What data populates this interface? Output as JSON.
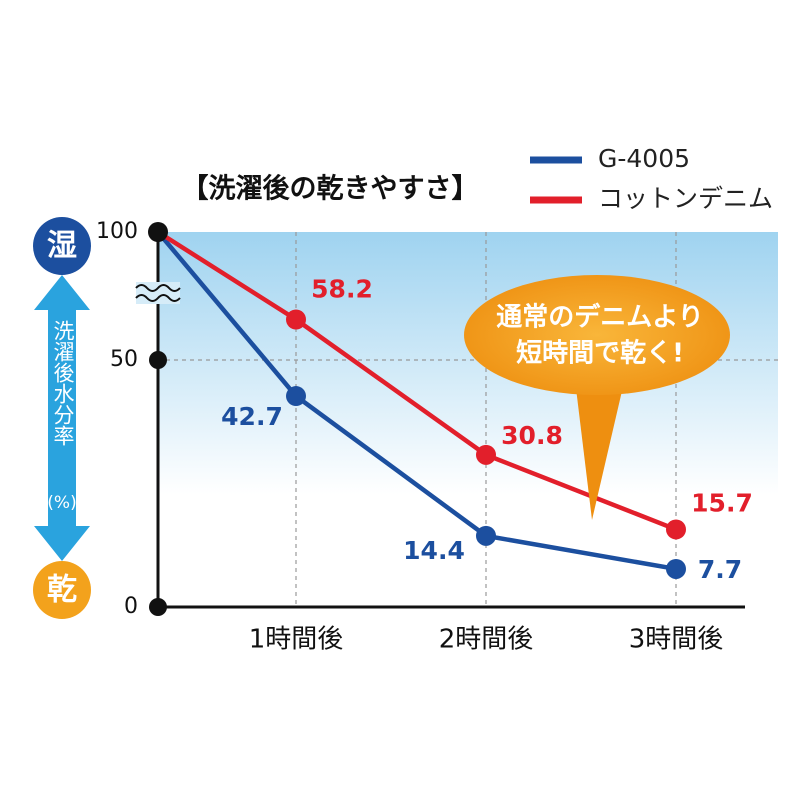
{
  "chart_data": {
    "type": "line",
    "title": "【洗濯後の乾きやすさ】",
    "categories": [
      null,
      "1時間後",
      "2時間後",
      "3時間後"
    ],
    "series": [
      {
        "name": "G-4005",
        "color": "#1c4f9f",
        "values": [
          100,
          42.7,
          14.4,
          7.7
        ]
      },
      {
        "name": "コットンデニム",
        "color": "#e21f2b",
        "values": [
          100,
          58.2,
          30.8,
          15.7
        ]
      }
    ],
    "ylim": [
      0,
      100
    ],
    "yticks": [
      0,
      50,
      100
    ],
    "axis_break": true,
    "grid": true,
    "y_axis_top": "湿",
    "y_axis_bottom": "乾",
    "y_axis_label": "洗濯後水分率",
    "y_axis_unit": "(%)",
    "callout": [
      "通常のデニムより",
      "短時間で乾く!"
    ]
  }
}
